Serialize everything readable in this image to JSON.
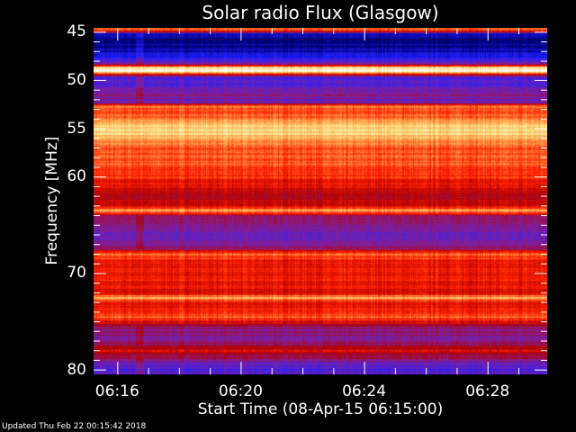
{
  "chart_data": {
    "type": "heatmap",
    "title": "Solar radio Flux (Glasgow)",
    "xlabel": "Start Time (08-Apr-15 06:15:00)",
    "ylabel": "Frequency [MHz]",
    "xlim": [
      "06:15:14",
      "06:29:56"
    ],
    "ylim": [
      80.5,
      44.6
    ],
    "y_inverted": true,
    "x_ticks": [
      "06:16",
      "06:20",
      "06:24",
      "06:28"
    ],
    "y_ticks": [
      45,
      50,
      55,
      60,
      70,
      80
    ],
    "colormap": [
      "#000000",
      "#000080",
      "#2020ff",
      "#8020a0",
      "#b00000",
      "#ff2000",
      "#ff9040",
      "#ffe080",
      "#ffffff"
    ],
    "frequency_profile": {
      "frequencies_mhz": [
        44.8,
        45.2,
        46,
        47,
        47.8,
        48.3,
        48.7,
        49,
        49.3,
        49.6,
        50.5,
        51.5,
        52.3,
        52.7,
        53.2,
        54,
        54.8,
        55.5,
        56.2,
        57,
        58.5,
        60,
        61,
        62,
        63,
        63.5,
        64,
        65,
        66.5,
        67.5,
        68,
        69,
        70.5,
        72,
        72.5,
        73,
        74,
        74.5,
        75.5,
        77,
        78,
        78.6,
        79.3,
        80
      ],
      "relative_intensity": [
        0.7,
        0.15,
        0.12,
        0.18,
        0.3,
        0.35,
        0.93,
        1.0,
        0.65,
        0.3,
        0.32,
        0.4,
        0.35,
        0.75,
        0.65,
        0.72,
        0.85,
        0.86,
        0.78,
        0.68,
        0.68,
        0.64,
        0.55,
        0.5,
        0.55,
        0.8,
        0.45,
        0.38,
        0.35,
        0.45,
        0.7,
        0.58,
        0.6,
        0.55,
        0.78,
        0.58,
        0.62,
        0.7,
        0.42,
        0.38,
        0.55,
        0.45,
        0.35,
        0.3
      ]
    }
  },
  "footer": {
    "updated": "Updated Thu Feb 22 00:15:42 2018"
  }
}
